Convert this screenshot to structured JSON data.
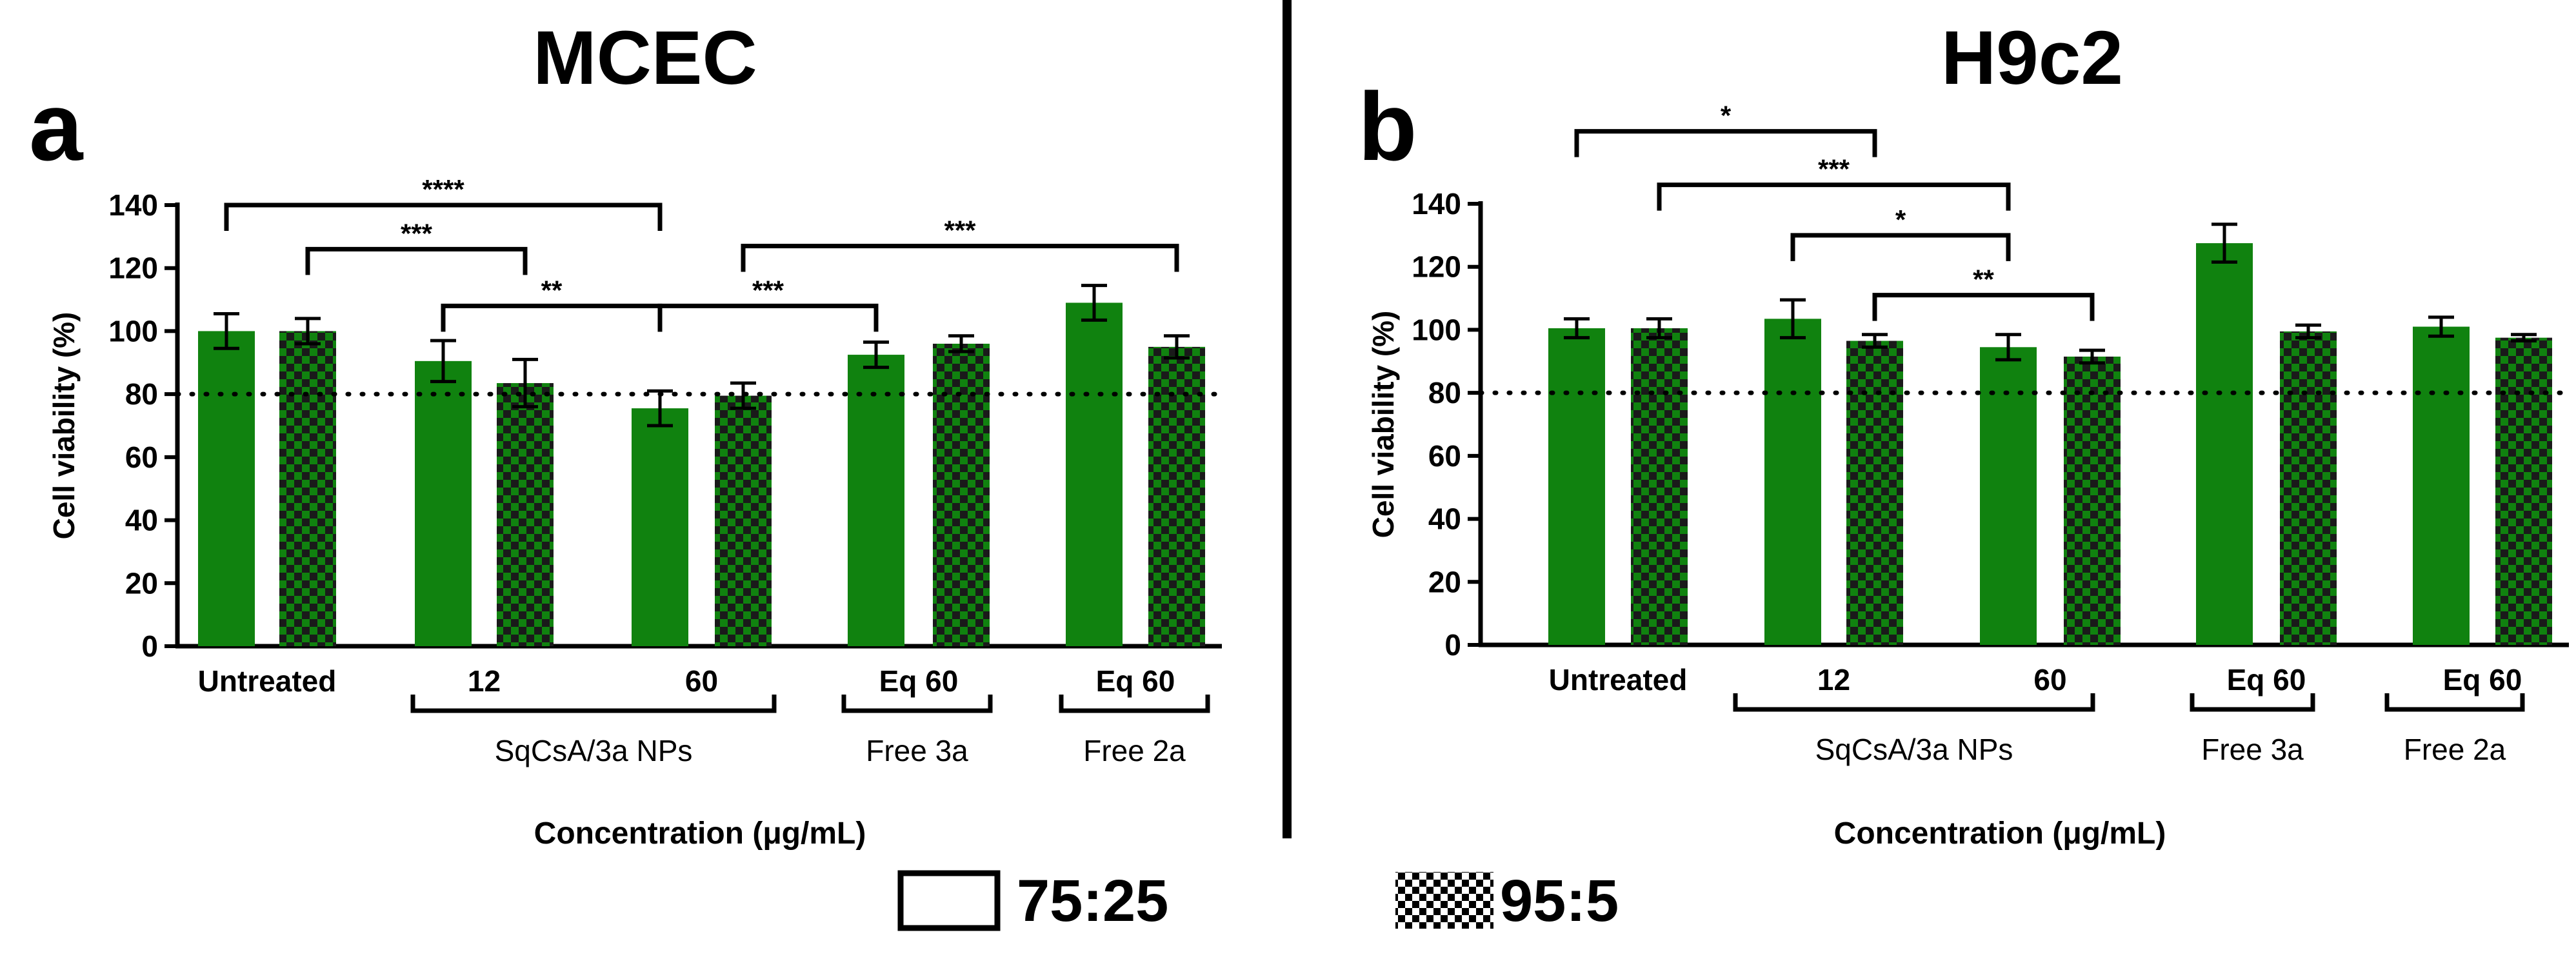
{
  "colors": {
    "bar": "#10820f",
    "bar_dark": "#0a4f0a",
    "axis": "#000000",
    "checker_dark": "#1a1a1a"
  },
  "legend": [
    {
      "label": "75:25",
      "pattern": "solid-outline"
    },
    {
      "label": "95:5",
      "pattern": "checker"
    }
  ],
  "chart_data": [
    {
      "type": "bar",
      "panel_letter": "a",
      "title": "MCEC",
      "xlabel": "Concentration (μg/mL)",
      "ylabel": "Cell viability (%)",
      "ylim": [
        0,
        140
      ],
      "yticks": [
        "0",
        "20",
        "40",
        "60",
        "80",
        "100",
        "120",
        "140"
      ],
      "reference_line": 80,
      "categories": [
        "Untreated",
        "12",
        "60",
        "Eq 60",
        "Eq 60"
      ],
      "groups": [
        {
          "label": "SqCsA/3a NPs",
          "from": 1,
          "to": 2
        },
        {
          "label": "Free 3a",
          "from": 3,
          "to": 3
        },
        {
          "label": "Free 2a",
          "from": 4,
          "to": 4
        }
      ],
      "series": [
        {
          "name": "75:25",
          "values": [
            100,
            90.5,
            75.5,
            92.5,
            109
          ],
          "errors": [
            5.5,
            6.5,
            5.5,
            4,
            5.5
          ]
        },
        {
          "name": "95:5",
          "values": [
            100,
            83.5,
            79.5,
            96,
            95
          ],
          "errors": [
            4,
            7.5,
            4,
            2.5,
            3.5
          ]
        }
      ],
      "significance": [
        {
          "from": [
            0,
            0
          ],
          "to": [
            2,
            0
          ],
          "label": "****",
          "y": 140
        },
        {
          "from": [
            0,
            1
          ],
          "to": [
            1,
            1
          ],
          "label": "***",
          "y": 126
        },
        {
          "from": [
            1,
            0
          ],
          "to": [
            2,
            0
          ],
          "label": "**",
          "y": 108
        },
        {
          "from": [
            2,
            0
          ],
          "to": [
            3,
            0
          ],
          "label": "***",
          "y": 108
        },
        {
          "from": [
            2,
            1
          ],
          "to": [
            4,
            1
          ],
          "label": "***",
          "y": 127
        }
      ]
    },
    {
      "type": "bar",
      "panel_letter": "b",
      "title": "H9c2",
      "xlabel": "Concentration (μg/mL)",
      "ylabel": "Cell viability (%)",
      "ylim": [
        0,
        140
      ],
      "yticks": [
        "0",
        "20",
        "40",
        "60",
        "80",
        "100",
        "120",
        "140"
      ],
      "reference_line": 80,
      "categories": [
        "Untreated",
        "12",
        "60",
        "Eq 60",
        "Eq 60"
      ],
      "groups": [
        {
          "label": "SqCsA/3a NPs",
          "from": 1,
          "to": 2
        },
        {
          "label": "Free 3a",
          "from": 3,
          "to": 3
        },
        {
          "label": "Free 2a",
          "from": 4,
          "to": 4
        }
      ],
      "series": [
        {
          "name": "75:25",
          "values": [
            100.5,
            103.5,
            94.5,
            127.5,
            101
          ],
          "errors": [
            3,
            6,
            4,
            6,
            3
          ]
        },
        {
          "name": "95:5",
          "values": [
            100.5,
            96.5,
            91.5,
            99.5,
            97.5
          ],
          "errors": [
            3,
            2,
            2,
            2,
            1
          ]
        }
      ],
      "significance": [
        {
          "from": [
            0,
            0
          ],
          "to": [
            1,
            1
          ],
          "label": "*",
          "y": 163
        },
        {
          "from": [
            0,
            1
          ],
          "to": [
            2,
            0
          ],
          "label": "***",
          "y": 146
        },
        {
          "from": [
            1,
            0
          ],
          "to": [
            2,
            0
          ],
          "label": "*",
          "y": 130
        },
        {
          "from": [
            1,
            1
          ],
          "to": [
            2,
            1
          ],
          "label": "**",
          "y": 111
        }
      ]
    }
  ]
}
